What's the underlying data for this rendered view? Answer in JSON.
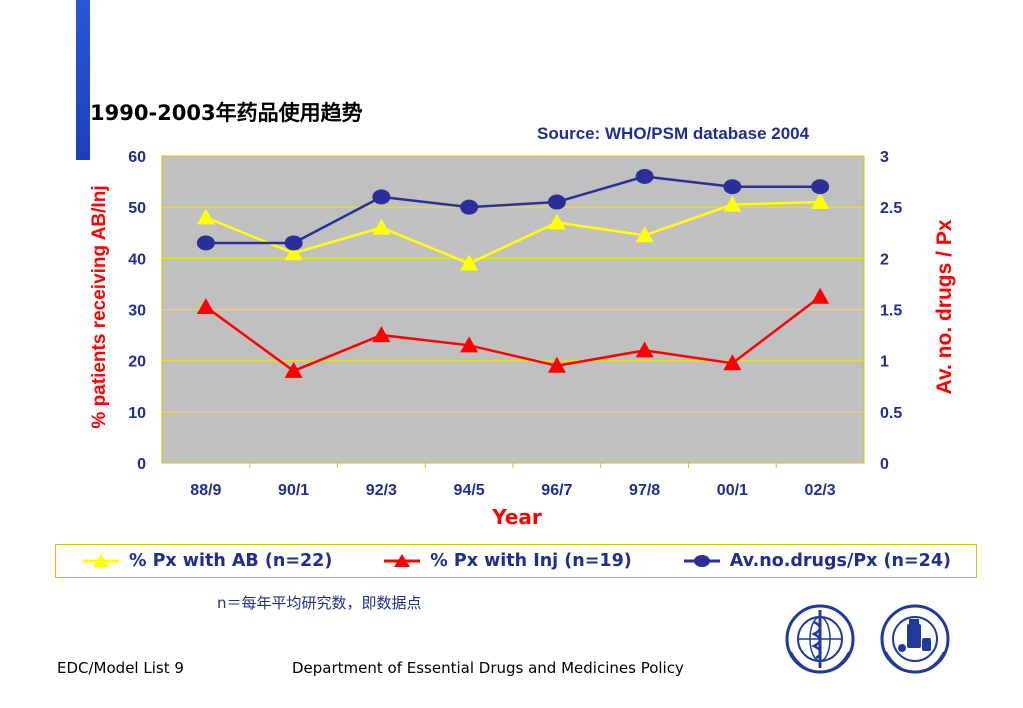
{
  "slide": {
    "title": "1990-2003年药品使用趋势",
    "source": "Source: WHO/PSM database 2004",
    "note": "n＝每年平均研究数，即数据点",
    "footer_left": "EDC/Model List 9",
    "footer_center": "Department of Essential Drugs and Medicines Policy",
    "accent_color": "#2a56d8",
    "logos": [
      "who-emblem-icon",
      "who-medicines-emblem-icon"
    ]
  },
  "chart_data": {
    "type": "line",
    "categories": [
      "88/9",
      "90/1",
      "92/3",
      "94/5",
      "96/7",
      "97/8",
      "00/1",
      "02/3"
    ],
    "xlabel": "Year",
    "ylabel": "% patients receiving AB/Inj",
    "y2label": "Av. no. drugs / Px",
    "ylim": [
      0,
      60
    ],
    "y2lim": [
      0,
      3
    ],
    "yticks": [
      "0",
      "10",
      "20",
      "30",
      "40",
      "50",
      "60"
    ],
    "y2ticks": [
      "0",
      "0.5",
      "1",
      "1.5",
      "2",
      "2.5",
      "3"
    ],
    "grid": true,
    "plot_background": "#c0c0c0",
    "legend_position": "bottom",
    "series": [
      {
        "name": "% Px with AB (n=22)",
        "axis": "left",
        "color": "#ffff00",
        "marker": "triangle",
        "values": [
          48,
          41,
          46,
          39,
          47,
          44.5,
          50.5,
          51
        ]
      },
      {
        "name": "% Px with Inj (n=19)",
        "axis": "left",
        "color": "#ff0000",
        "marker": "triangle",
        "values": [
          30.5,
          18,
          25,
          23,
          19,
          22,
          19.5,
          32.5
        ]
      },
      {
        "name": "Av.no.drugs/Px (n=24)",
        "axis": "right",
        "color": "#2b2f9a",
        "marker": "circle",
        "values": [
          2.15,
          2.15,
          2.6,
          2.5,
          2.55,
          2.8,
          2.7,
          2.7
        ]
      }
    ]
  }
}
